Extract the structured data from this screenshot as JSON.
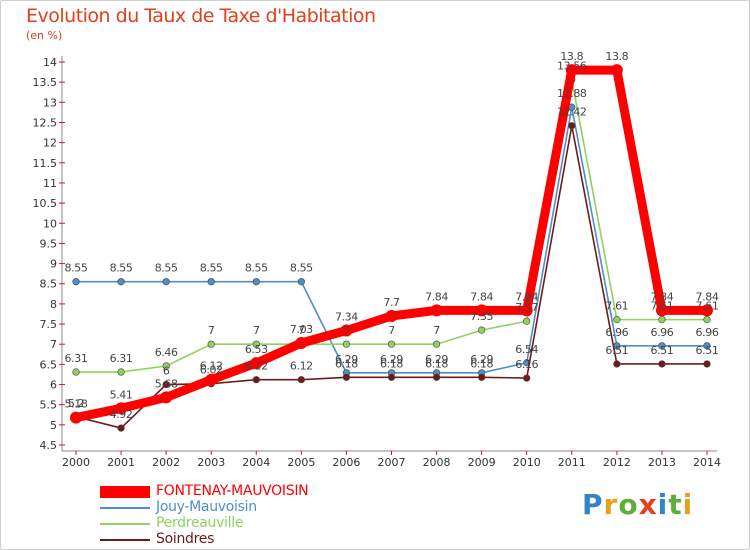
{
  "chart_data": {
    "type": "line",
    "title": "Evolution du Taux de Taxe d'Habitation",
    "subtitle": "(en %)",
    "x": [
      "2000",
      "2001",
      "2002",
      "2003",
      "2004",
      "2005",
      "2006",
      "2007",
      "2008",
      "2009",
      "2010",
      "2011",
      "2012",
      "2013",
      "2014"
    ],
    "yticks": [
      "4.5",
      "5",
      "5.5",
      "6",
      "6.5",
      "7",
      "7.5",
      "8",
      "8.5",
      "9",
      "9.5",
      "10",
      "10.5",
      "11",
      "11.5",
      "12",
      "12.5",
      "13",
      "13.5",
      "14"
    ],
    "ylim": [
      4.5,
      14
    ],
    "grid": false,
    "legend_position": "bottom-left",
    "series": [
      {
        "name": "Jouy-Mauvoisin",
        "color": "#4d8fc9",
        "values": [
          8.55,
          8.55,
          8.55,
          8.55,
          8.55,
          8.55,
          6.29,
          6.29,
          6.29,
          6.29,
          6.54,
          12.88,
          6.96,
          6.96,
          6.96
        ],
        "labels": [
          "8.55",
          "8.55",
          "8.55",
          "8.55",
          "8.55",
          "8.55",
          "6.29",
          "6.29",
          "6.29",
          "6.29",
          "6.54",
          "12.88",
          "6.96",
          "6.96",
          "6.96"
        ]
      },
      {
        "name": "Perdreauville",
        "color": "#8ed260",
        "values": [
          6.31,
          6.31,
          6.46,
          7,
          7,
          7,
          7,
          7,
          7,
          7.35,
          7.57,
          13.56,
          7.61,
          7.61,
          7.61
        ],
        "labels": [
          "6.31",
          "6.31",
          "6.46",
          "7",
          "7",
          "7",
          "7",
          "7",
          "7",
          "7.35",
          "7.57",
          "13.56",
          "7.61",
          "7.61",
          "7.61"
        ]
      },
      {
        "name": "Soindres",
        "color": "#6e1a1a",
        "values": [
          5.2,
          4.92,
          6,
          6.02,
          6.12,
          6.12,
          6.18,
          6.18,
          6.18,
          6.18,
          6.16,
          12.42,
          6.51,
          6.51,
          6.51
        ],
        "labels": [
          "5.2",
          "4.92",
          "6",
          "6.02",
          "6.12",
          "6.12",
          "6.18",
          "6.18",
          "6.18",
          "6.18",
          "6.16",
          "12.42",
          "6.51",
          "6.51",
          "6.51"
        ]
      },
      {
        "name": "FONTENAY-MAUVOISIN",
        "color": "#ff0000",
        "values": [
          5.18,
          5.41,
          5.68,
          6.12,
          6.53,
          7.03,
          7.34,
          7.7,
          7.84,
          7.84,
          7.84,
          13.8,
          13.8,
          7.84,
          7.84
        ],
        "labels": [
          "5.18",
          "5.41",
          "5.68",
          "6.12",
          "6.53",
          "7.03",
          "7.34",
          "7.7",
          "7.84",
          "7.84",
          "7.84",
          "13.8",
          "13.8",
          "7.84",
          "7.84"
        ]
      }
    ]
  },
  "legend": [
    {
      "label": "FONTENAY-MAUVOISIN",
      "color": "#ff0000",
      "width": 12
    },
    {
      "label": "Jouy-Mauvoisin",
      "color": "#4d8fc9",
      "width": 2
    },
    {
      "label": "Perdreauville",
      "color": "#8ed260",
      "width": 2
    },
    {
      "label": "Soindres",
      "color": "#6e1a1a",
      "width": 2
    }
  ],
  "logo": {
    "letters": [
      "P",
      "r",
      "o",
      "x",
      "i",
      "t",
      "i"
    ],
    "colors": [
      "#2e86c9",
      "#e7a21c",
      "#5cae3a",
      "#e2411e",
      "#2e86c9",
      "#5cae3a",
      "#e7a21c"
    ]
  }
}
